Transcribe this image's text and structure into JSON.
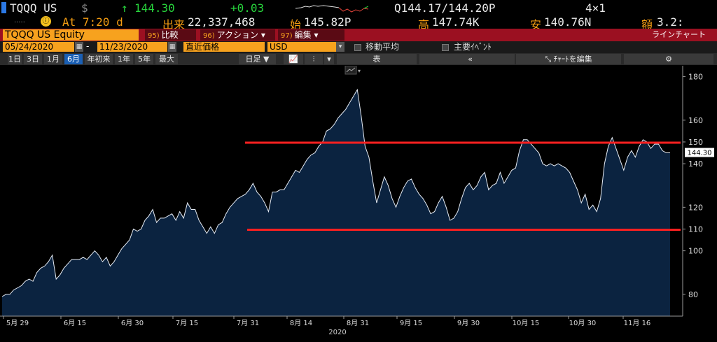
{
  "ticker": {
    "symbol": "TQQQ US",
    "currency": "$",
    "arrow": "↑",
    "last": "144.30",
    "change": "+0.03",
    "quote": "Q144.17/144.20P",
    "size": "4×1",
    "at_label": "At 7:20 d",
    "volume_label": "出来",
    "volume": "22,337,468",
    "open_label": "始",
    "open": "145.82P",
    "high_label": "高",
    "high": "147.74K",
    "low_label": "安",
    "low": "140.76N",
    "value_label": "額",
    "value": "3.2:",
    "dots": "....."
  },
  "title_bar": {
    "security": "TQQQ US Equity",
    "compare_num": "95)",
    "compare": "比較",
    "actions_num": "96)",
    "actions": "アクション ▾",
    "edit_num": "97)",
    "edit": "編集 ▾",
    "chart_type": "ラインチャート"
  },
  "range": {
    "start": "05/24/2020",
    "dash": "-",
    "end": "11/23/2020",
    "price_type": "直近価格",
    "currency": "USD",
    "moving_avg": "移動平均",
    "key_events": "主要ｲﾍﾞﾝﾄ"
  },
  "periods": [
    "1日",
    "3日",
    "1月",
    "6月",
    "年初来",
    "1年",
    "5年",
    "最大"
  ],
  "active_period": "6月",
  "toolbar": {
    "daily": "日足 ▼",
    "table": "表",
    "collapse": "«",
    "edit_chart": "ﾁｬｰﾄを編集",
    "settings_icon": "gear-icon"
  },
  "chart_data": {
    "type": "area",
    "series": [
      {
        "values": [
          79,
          80,
          80,
          82,
          83,
          84,
          86,
          87,
          86,
          90,
          92,
          93,
          95,
          98,
          87,
          89,
          92,
          94,
          96,
          96,
          96,
          97,
          96,
          98,
          100,
          98,
          95,
          97,
          93,
          95,
          98,
          101,
          103,
          105,
          110,
          109,
          110,
          114,
          116,
          119,
          113,
          115,
          115,
          116,
          117,
          114,
          118,
          115,
          122,
          119,
          119,
          114,
          111,
          108,
          111,
          108,
          112,
          113,
          117,
          120,
          122,
          124,
          125,
          126,
          128,
          131,
          127,
          125,
          122,
          118,
          127,
          127,
          128,
          128,
          131,
          134,
          137,
          136,
          139,
          142,
          144,
          145,
          148,
          150,
          155,
          156,
          158,
          161,
          163,
          165,
          168,
          171,
          174,
          162,
          148,
          143,
          132,
          122,
          128,
          134,
          130,
          124,
          120,
          125,
          129,
          132,
          133,
          129,
          126,
          124,
          121,
          117,
          118,
          122,
          125,
          120,
          114,
          115,
          118,
          124,
          129,
          131,
          128,
          130,
          134,
          136,
          128,
          130,
          131,
          136,
          131,
          134,
          137,
          138,
          146,
          151,
          151,
          149,
          147,
          145,
          140,
          139,
          140,
          139,
          140,
          139,
          138,
          136,
          132,
          128,
          122,
          126,
          119,
          121,
          118,
          124,
          140,
          148,
          152,
          147,
          142,
          137,
          143,
          146,
          143,
          148,
          151,
          150,
          147,
          149,
          149,
          146,
          145,
          145
        ]
      }
    ],
    "ylim": [
      70,
      185
    ],
    "yticks": [
      80,
      100,
      110,
      120,
      140,
      150,
      160,
      180
    ],
    "xticks": [
      "5月 29",
      "6月 15",
      "6月 30",
      "7月 15",
      "7月 31",
      "8月 14",
      "8月 31",
      "9月 15",
      "9月 30",
      "10月 15",
      "10月 30",
      "11月 16"
    ],
    "year_label": "2020",
    "last_price_label": "144.30",
    "resistance": 150,
    "support": 110,
    "grid": false,
    "colors": {
      "fill": "#0b2340",
      "line": "#e6ecf5",
      "lines": "#ff2020",
      "label_box": "#ffffff"
    }
  }
}
